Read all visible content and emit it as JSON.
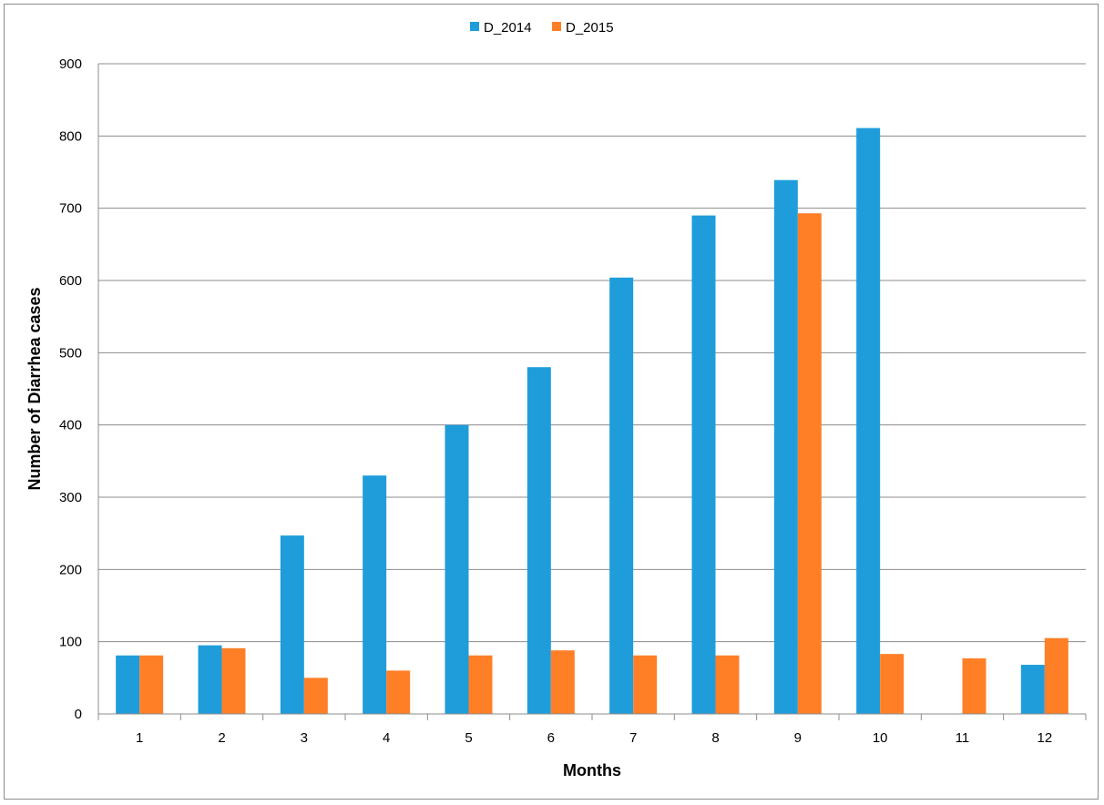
{
  "chart_data": {
    "type": "bar",
    "categories": [
      "1",
      "2",
      "3",
      "4",
      "5",
      "6",
      "7",
      "8",
      "9",
      "10",
      "11",
      "12"
    ],
    "series": [
      {
        "name": "D_2014",
        "color": "#1f9ddb",
        "values": [
          81,
          95,
          247,
          330,
          400,
          480,
          604,
          690,
          739,
          811,
          null,
          68
        ]
      },
      {
        "name": "D_2015",
        "color": "#ff7f27",
        "values": [
          81,
          91,
          50,
          60,
          81,
          88,
          81,
          81,
          693,
          83,
          77,
          105
        ]
      }
    ],
    "xlabel": "Months",
    "ylabel": "Number of Diarrhea cases",
    "ylim": [
      0,
      900
    ],
    "yticks": [
      0,
      100,
      200,
      300,
      400,
      500,
      600,
      700,
      800,
      900
    ],
    "grid": true,
    "legend_position": "top-center"
  }
}
